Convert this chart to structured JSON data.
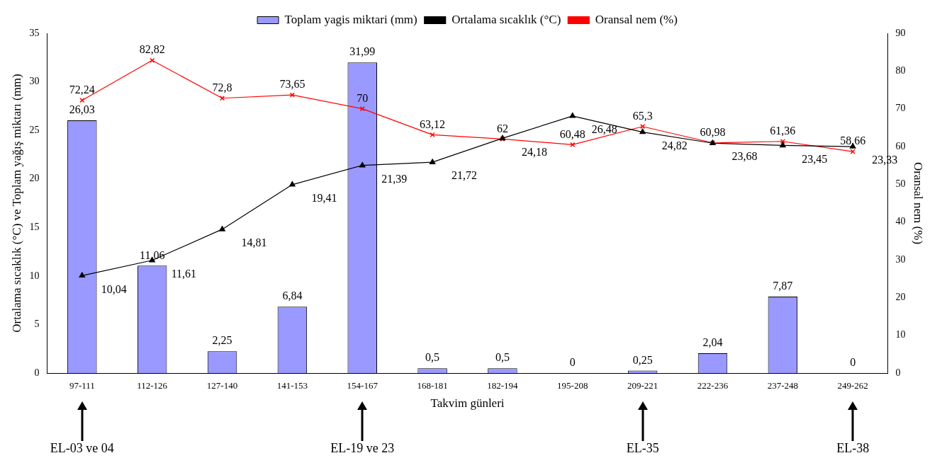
{
  "chart_data": {
    "type": "bar",
    "xlabel": "Takvim günleri",
    "ylabel": "Ortalama sıcaklık (°C) ve Toplam yağış miktarı (mm)",
    "y2label": "Oransal nem (%)",
    "categories": [
      "97-111",
      "112-126",
      "127-140",
      "141-153",
      "154-167",
      "168-181",
      "182-194",
      "195-208",
      "209-221",
      "222-236",
      "237-248",
      "249-262"
    ],
    "series": [
      {
        "name": "Toplam yagis miktari (mm)",
        "color": "#9999ff",
        "values": [
          26.03,
          11.06,
          2.25,
          6.84,
          31.99,
          0.5,
          0.5,
          0,
          0.25,
          2.04,
          7.87,
          0
        ],
        "value_labels": [
          "26,03",
          "11,06",
          "2,25",
          "6,84",
          "31,99",
          "0,5",
          "0,5",
          "0",
          "0,25",
          "2,04",
          "7,87",
          "0"
        ]
      },
      {
        "name": "Ortalama sıcaklık (°C)",
        "type": "line",
        "color": "#000000",
        "marker": "triangle",
        "values": [
          10.04,
          11.61,
          14.81,
          19.41,
          21.39,
          21.72,
          24.18,
          26.48,
          24.82,
          23.68,
          23.45,
          23.33
        ],
        "value_labels": [
          "10,04",
          "11,61",
          "14,81",
          "19,41",
          "21,39",
          "21,72",
          "24,18",
          "26,48",
          "24,82",
          "23,68",
          "23,45",
          "23,33"
        ]
      },
      {
        "name": "Oransal nem (%)",
        "type": "line",
        "axis": "y2",
        "color": "#ff0000",
        "marker": "cross",
        "values": [
          72.24,
          82.82,
          72.8,
          73.65,
          70,
          63.12,
          62,
          60.48,
          65.3,
          60.98,
          61.36,
          58.66
        ],
        "value_labels": [
          "72,24",
          "82,82",
          "72,8",
          "73,65",
          "70",
          "63,12",
          "62",
          "60,48",
          "65,3",
          "60,98",
          "61,36",
          "58,66"
        ]
      }
    ],
    "ylim": [
      0,
      35
    ],
    "yticks": [
      0,
      5,
      10,
      15,
      20,
      25,
      30,
      35
    ],
    "y2lim": [
      0,
      90
    ],
    "y2ticks": [
      0,
      10,
      20,
      30,
      40,
      50,
      60,
      70,
      80,
      90
    ],
    "grid": false,
    "legend": "top",
    "annotations": [
      "EL-03 ve 04",
      "EL-19 ve 23",
      "EL-35",
      "EL-38"
    ]
  }
}
